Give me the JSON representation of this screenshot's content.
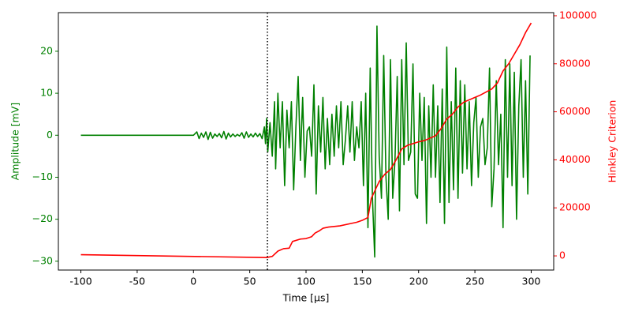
{
  "chart_data": {
    "type": "line",
    "xlabel": "Time [µs]",
    "ylabel": "Amplitude [mV]",
    "y2label": "Hinkley Criterion",
    "xlim": [
      -120,
      320
    ],
    "xticks": [
      -100,
      -50,
      0,
      50,
      100,
      150,
      200,
      250,
      300
    ],
    "ylim": [
      -32.1,
      29.2
    ],
    "yticks": [
      {
        "value": -30,
        "label": "−30"
      },
      {
        "value": -20,
        "label": "−20"
      },
      {
        "value": -10,
        "label": "−10"
      },
      0,
      10,
      20
    ],
    "y2lim": [
      -5900,
      101300
    ],
    "y2ticks": [
      0,
      20000,
      40000,
      60000,
      80000,
      100000
    ],
    "ycolor": "green",
    "y2color": "red",
    "vline_x": 65.7,
    "series": [
      {
        "color": "green",
        "axis": "y",
        "x": [
          -100,
          0,
          3,
          5,
          7,
          9,
          11,
          13,
          15,
          17,
          19,
          21,
          23,
          25,
          27,
          29,
          31,
          33,
          35,
          37,
          39,
          41,
          43,
          45,
          47,
          49,
          51,
          53,
          55,
          57,
          59,
          61,
          63,
          64,
          65,
          66,
          68,
          70,
          72,
          73,
          75,
          77,
          79,
          81,
          83,
          85,
          87,
          89,
          91,
          93,
          95,
          97,
          99,
          101,
          103,
          105,
          107,
          109,
          111,
          113,
          115,
          117,
          119,
          121,
          123,
          125,
          127,
          129,
          131,
          133,
          135,
          137,
          139,
          141,
          143,
          145,
          147,
          149,
          151,
          153,
          155,
          157,
          159,
          161,
          163,
          165,
          167,
          169,
          171,
          173,
          175,
          177,
          179,
          181,
          183,
          185,
          187,
          189,
          191,
          193,
          195,
          197,
          199,
          201,
          203,
          205,
          207,
          209,
          211,
          213,
          215,
          217,
          219,
          221,
          223,
          225,
          227,
          229,
          231,
          233,
          235,
          237,
          239,
          241,
          243,
          245,
          247,
          249,
          251,
          253,
          255,
          257,
          259,
          261,
          263,
          265,
          267,
          269,
          271,
          273,
          275,
          277,
          279,
          281,
          283,
          285,
          287,
          289,
          291,
          293,
          295,
          297,
          299
        ],
        "values": [
          0,
          0,
          0.8,
          -0.8,
          0.5,
          -0.5,
          0.8,
          -1,
          0.7,
          -0.7,
          0.3,
          -0.3,
          0.4,
          -0.6,
          0.9,
          -0.9,
          0.5,
          -0.4,
          0.3,
          -0.3,
          0.2,
          -0.2,
          0.6,
          -0.7,
          0.8,
          -0.5,
          0.3,
          -0.4,
          0.5,
          -0.3,
          0.4,
          -0.8,
          2,
          -2,
          4,
          -4,
          3,
          -5,
          8,
          -8,
          10,
          -3,
          8,
          -12,
          6,
          -3,
          8,
          -13,
          2,
          14,
          -6,
          9,
          -10,
          1,
          2,
          -5,
          12,
          -14,
          7,
          -4,
          9,
          -8,
          4,
          -7,
          5,
          -5,
          7,
          -3,
          8,
          -7,
          -1,
          7,
          -4,
          8,
          -6,
          2,
          -3,
          8,
          -12,
          10,
          -22,
          16,
          -15,
          -29,
          26,
          -5,
          -15,
          19,
          -10,
          -20,
          18,
          -15,
          -6,
          14,
          -18,
          18,
          -7,
          22,
          -6,
          -4,
          17,
          -14,
          -15,
          10,
          -6,
          9,
          -21,
          7,
          -10,
          12,
          -10,
          7,
          -16,
          11,
          -21,
          21,
          -16,
          8,
          -13,
          16,
          -15,
          13,
          -9,
          12,
          -8,
          8,
          -12,
          3,
          9,
          -10,
          2,
          4,
          -7,
          -3,
          16,
          -17,
          -8,
          13,
          -7,
          5,
          -22,
          18,
          -10,
          17,
          -12,
          15,
          -20,
          7,
          18,
          -10,
          13,
          -14,
          19
        ]
      },
      {
        "color": "red",
        "axis": "y2",
        "x": [
          -100,
          65,
          70,
          75,
          80,
          85,
          88,
          95,
          100,
          105,
          108,
          112,
          115,
          120,
          130,
          140,
          145,
          150,
          155,
          158,
          162,
          165,
          170,
          175,
          180,
          185,
          190,
          200,
          205,
          210,
          215,
          220,
          225,
          230,
          235,
          240,
          250,
          255,
          265,
          270,
          275,
          280,
          285,
          290,
          295,
          300
        ],
        "values": [
          500,
          -700,
          -200,
          2000,
          3000,
          3200,
          6000,
          7000,
          7200,
          8000,
          9500,
          10500,
          11500,
          12000,
          12500,
          13500,
          14000,
          14800,
          16000,
          24000,
          28000,
          31000,
          34000,
          36000,
          40000,
          44500,
          46000,
          47500,
          48000,
          49000,
          50000,
          53000,
          57000,
          59000,
          62000,
          64000,
          66000,
          67000,
          69500,
          72000,
          77000,
          80000,
          84000,
          88000,
          93000,
          97000
        ]
      }
    ]
  }
}
